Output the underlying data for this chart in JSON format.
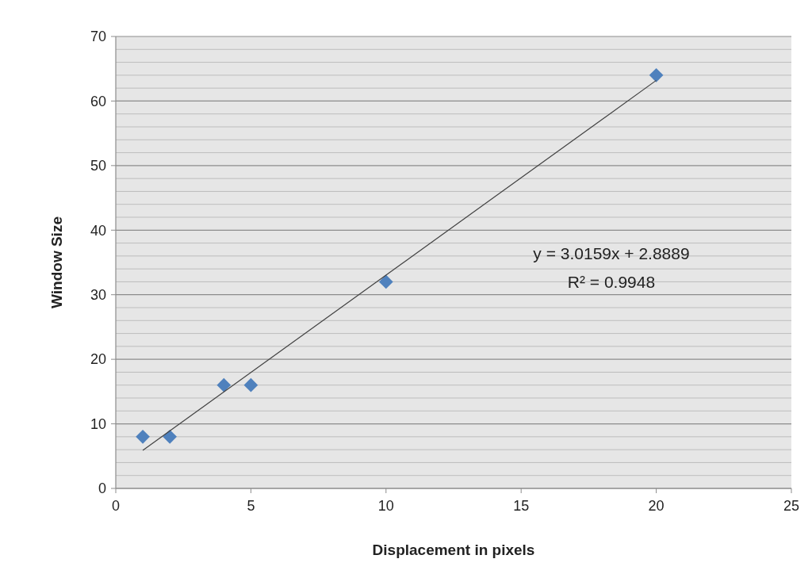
{
  "chart_data": {
    "type": "scatter",
    "xlabel": "Displacement in pixels",
    "ylabel": "Window Size",
    "grid": "y",
    "xlim": [
      0,
      25
    ],
    "xticks": [
      0,
      5,
      10,
      15,
      20,
      25
    ],
    "ylim": [
      0,
      70
    ],
    "yticks": [
      0,
      {
        "value": 2,
        "label": null
      },
      {
        "value": 4,
        "label": null
      },
      {
        "value": 6,
        "label": null
      },
      {
        "value": 8,
        "label": null
      },
      10,
      {
        "value": 12,
        "label": null
      },
      {
        "value": 14,
        "label": null
      },
      {
        "value": 16,
        "label": null
      },
      {
        "value": 18,
        "label": null
      },
      20,
      {
        "value": 22,
        "label": null
      },
      {
        "value": 24,
        "label": null
      },
      {
        "value": 26,
        "label": null
      },
      {
        "value": 28,
        "label": null
      },
      30,
      {
        "value": 32,
        "label": null
      },
      {
        "value": 34,
        "label": null
      },
      {
        "value": 36,
        "label": null
      },
      {
        "value": 38,
        "label": null
      },
      40,
      {
        "value": 42,
        "label": null
      },
      {
        "value": 44,
        "label": null
      },
      {
        "value": 46,
        "label": null
      },
      {
        "value": 48,
        "label": null
      },
      50,
      {
        "value": 52,
        "label": null
      },
      {
        "value": 54,
        "label": null
      },
      {
        "value": 56,
        "label": null
      },
      {
        "value": 58,
        "label": null
      },
      60,
      {
        "value": 62,
        "label": null
      },
      {
        "value": 64,
        "label": null
      },
      {
        "value": 66,
        "label": null
      },
      {
        "value": 68,
        "label": null
      },
      70
    ],
    "annotations": [
      "y = 3.0159x + 2.8889",
      "R² = 0.9948"
    ],
    "series": [
      {
        "marker": "diamond",
        "color": "#4f81bd",
        "x": [
          1,
          2,
          4,
          5,
          10,
          20
        ],
        "values": [
          8,
          8,
          16,
          16,
          32,
          64
        ]
      },
      {
        "type": "line",
        "marker": "none",
        "color": "#404040",
        "x": [
          1,
          20
        ],
        "values": [
          5.9,
          63.2
        ]
      }
    ]
  }
}
